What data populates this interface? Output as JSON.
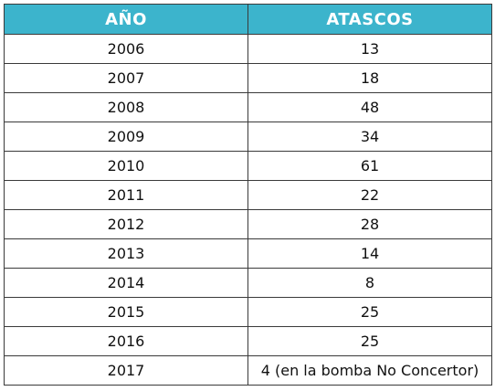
{
  "chart_data": {
    "type": "table",
    "columns": [
      "AÑO",
      "ATASCOS"
    ],
    "rows": [
      [
        "2006",
        "13"
      ],
      [
        "2007",
        "18"
      ],
      [
        "2008",
        "48"
      ],
      [
        "2009",
        "34"
      ],
      [
        "2010",
        "61"
      ],
      [
        "2011",
        "22"
      ],
      [
        "2012",
        "28"
      ],
      [
        "2013",
        "14"
      ],
      [
        "2014",
        "8"
      ],
      [
        "2015",
        "25"
      ],
      [
        "2016",
        "25"
      ],
      [
        "2017",
        "4 (en la bomba No Concertor)"
      ]
    ]
  },
  "colors": {
    "header_background": "#3cb4cc",
    "header_text": "#ffffff",
    "border": "#3a3a3a"
  }
}
